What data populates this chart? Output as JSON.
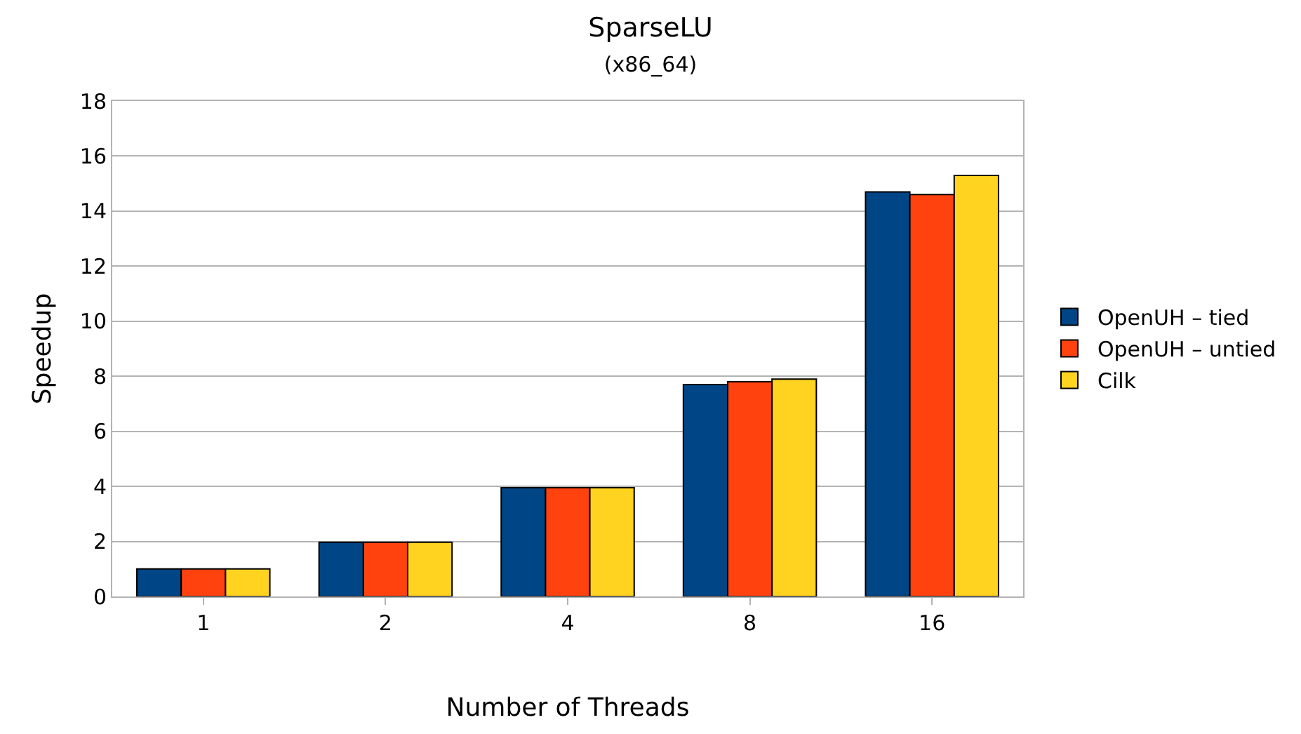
{
  "chart_data": {
    "type": "bar",
    "title": "SparseLU",
    "subtitle": "(x86_64)",
    "xlabel": "Number of Threads",
    "ylabel": "Speedup",
    "categories": [
      "1",
      "2",
      "4",
      "8",
      "16"
    ],
    "series": [
      {
        "name": "OpenUH – tied",
        "color": "#004586",
        "values": [
          1.0,
          1.97,
          3.95,
          7.7,
          14.7
        ]
      },
      {
        "name": "OpenUH – untied",
        "color": "#ff420e",
        "values": [
          1.0,
          1.97,
          3.95,
          7.8,
          14.6
        ]
      },
      {
        "name": "Cilk",
        "color": "#ffd320",
        "values": [
          1.0,
          1.97,
          3.95,
          7.9,
          15.3
        ]
      }
    ],
    "ylim": [
      0,
      18
    ],
    "yticks": [
      0,
      2,
      4,
      6,
      8,
      10,
      12,
      14,
      16,
      18
    ],
    "grid": "y",
    "legend": "right"
  }
}
